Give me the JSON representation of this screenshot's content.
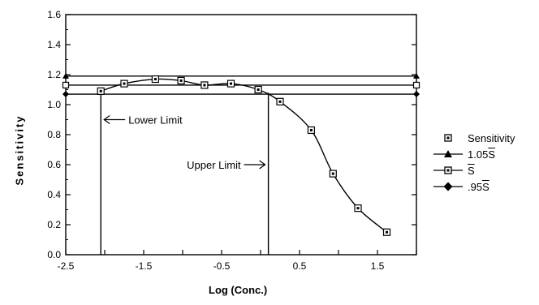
{
  "chart_data": {
    "type": "line",
    "xlabel": "Log (Conc.)",
    "ylabel": "Sensitivity",
    "xlim": [
      -2.5,
      2
    ],
    "ylim": [
      0,
      1.6
    ],
    "xticks": [
      "-2.5",
      "-1.5",
      "-0.5",
      "0.5",
      "1.5"
    ],
    "xtick_values": [
      -2.5,
      -1.5,
      -0.5,
      0.5,
      1.5
    ],
    "yticks": [
      "0.0",
      "0.2",
      "0.4",
      "0.6",
      "0.8",
      "1.0",
      "1.2",
      "1.4",
      "1.6"
    ],
    "ytick_values": [
      0,
      0.2,
      0.4,
      0.6,
      0.8,
      1.0,
      1.2,
      1.4,
      1.6
    ],
    "grid": false,
    "legend_position": "right",
    "series": [
      {
        "name": "Sensitivity",
        "marker": "square-open",
        "x": [
          -2.05,
          -1.75,
          -1.35,
          -1.02,
          -0.72,
          -0.38,
          -0.03,
          0.25,
          0.65,
          0.93,
          1.25,
          1.62
        ],
        "y": [
          1.09,
          1.14,
          1.17,
          1.16,
          1.13,
          1.14,
          1.1,
          1.02,
          0.83,
          0.54,
          0.31,
          0.15
        ]
      },
      {
        "name": "1.05S",
        "marker": "triangle-filled",
        "value": 1.19
      },
      {
        "name": "S",
        "marker": "square-open",
        "value": 1.13
      },
      {
        "name": ".95S",
        "marker": "diamond-filled",
        "value": 1.07
      }
    ],
    "annotations": [
      {
        "text": "Lower Limit",
        "x": -2.05
      },
      {
        "text": "Upper Limit",
        "x": 0.1
      }
    ]
  }
}
